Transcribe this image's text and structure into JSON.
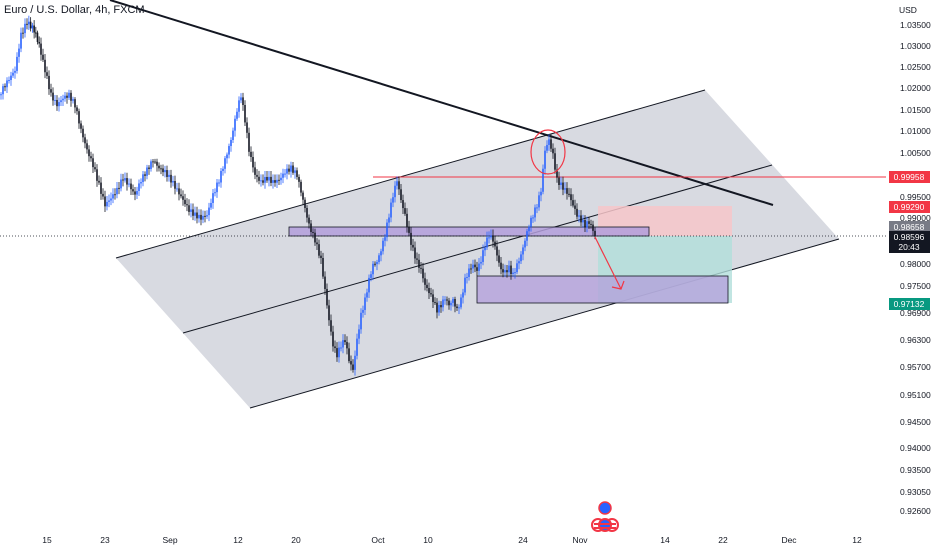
{
  "header": {
    "title": "Euro / U.S. Dollar, 4h, FXCM"
  },
  "price_axis": {
    "currency": "USD",
    "labels": [
      "1.03500",
      "1.03000",
      "1.02500",
      "1.02000",
      "1.01500",
      "1.01000",
      "1.00500",
      "0.99500",
      "0.99000",
      "0.98000",
      "0.97500",
      "0.96900",
      "0.96300",
      "0.95700",
      "0.95100",
      "0.94500",
      "0.94000",
      "0.93500",
      "0.93050",
      "0.92600"
    ]
  },
  "time_axis": {
    "labels": [
      "15",
      "23",
      "Sep",
      "12",
      "20",
      "Oct",
      "10",
      "24",
      "Nov",
      "14",
      "22",
      "Dec",
      "12"
    ]
  },
  "price_tags": [
    {
      "label": "0.99958",
      "color": "#f23645"
    },
    {
      "label": "0.99290",
      "color": "#f23645"
    },
    {
      "label": "0.98658",
      "color": "#787b86"
    },
    {
      "label": "0.98596",
      "color": "#131722"
    },
    {
      "label": "20:43",
      "color": "#131722"
    },
    {
      "label": "0.97132",
      "color": "#089981"
    }
  ],
  "colors": {
    "bull": "#2962ff",
    "bear": "#131722",
    "channel_fill": "#d1d4dc",
    "zone_fill": "#b39ddb",
    "stop_fill": "#f7c5c9",
    "target_fill": "#b2dfdb",
    "level_line": "#f23645",
    "annotation": "#f23645"
  },
  "icons": {
    "logo": "tradingview-flag-icon"
  }
}
